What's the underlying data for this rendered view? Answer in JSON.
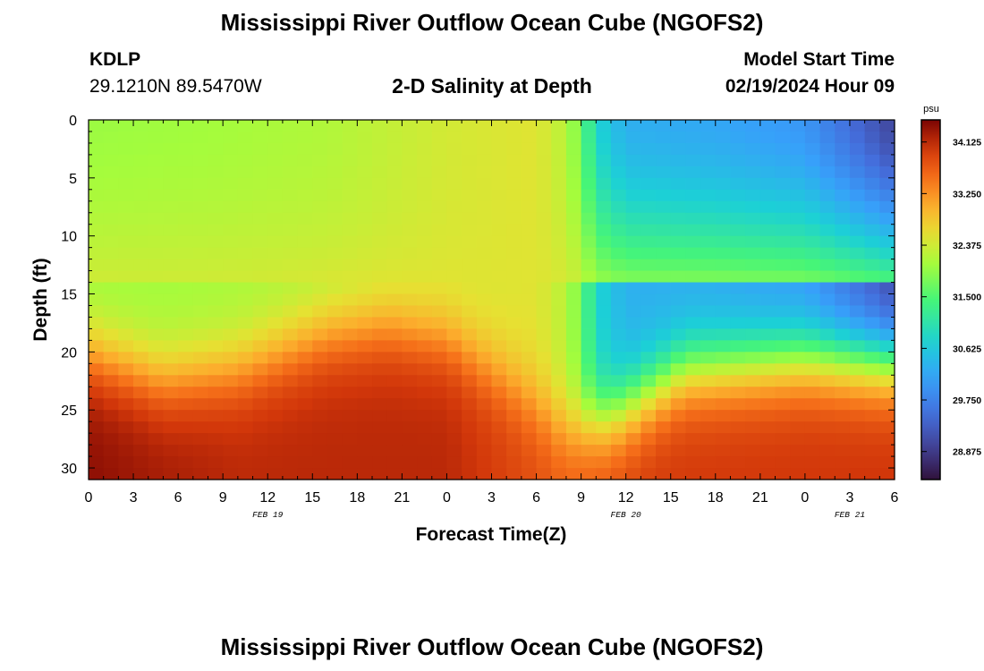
{
  "header": {
    "title": "Mississippi River Outflow Ocean Cube (NGOFS2)",
    "station_id": "KDLP",
    "station_coords": "29.1210N  89.5470W",
    "subtitle": "2-D Salinity at Depth",
    "start_time_label": "Model Start Time",
    "start_time_value": "02/19/2024 Hour 09"
  },
  "footer": {
    "title": "Mississippi River Outflow Ocean Cube (NGOFS2)"
  },
  "chart_data": {
    "type": "heatmap",
    "title": "2-D Salinity at Depth",
    "xlabel": "Forecast Time(Z)",
    "ylabel": "Depth (ft)",
    "x_tick_labels": [
      "0",
      "3",
      "6",
      "9",
      "12",
      "15",
      "18",
      "21",
      "0",
      "3",
      "6",
      "9",
      "12",
      "15",
      "18",
      "21",
      "0",
      "3",
      "6"
    ],
    "x_range_hours": [
      0,
      54
    ],
    "date_labels": [
      {
        "hour": 12,
        "label": "FEB 19"
      },
      {
        "hour": 36,
        "label": "FEB 20"
      },
      {
        "hour": 51,
        "label": "FEB 21"
      }
    ],
    "y_range": [
      0,
      31
    ],
    "y_inverted": true,
    "y_ticks": [
      0,
      5,
      10,
      15,
      20,
      25,
      30
    ],
    "colorbar": {
      "unit": "psu",
      "range": [
        28.4,
        34.5
      ],
      "ticks": [
        "34.125",
        "33.250",
        "32.375",
        "31.500",
        "30.625",
        "29.750",
        "28.875"
      ]
    },
    "grid_cols": 54,
    "grid_rows": 31,
    "surface_salinity": [
      [
        0,
        32.0
      ],
      [
        8,
        32.05
      ],
      [
        16,
        32.15
      ],
      [
        24,
        32.4
      ],
      [
        30,
        32.5
      ],
      [
        32,
        32.2
      ],
      [
        33,
        31.7
      ],
      [
        34,
        30.8
      ],
      [
        36,
        30.3
      ],
      [
        42,
        30.2
      ],
      [
        48,
        30.0
      ],
      [
        54,
        29.0
      ]
    ],
    "halocline_depth_ft": [
      [
        0,
        20.3
      ],
      [
        5,
        22.5
      ],
      [
        10,
        21.5
      ],
      [
        16,
        18.5
      ],
      [
        20,
        17.8
      ],
      [
        24,
        19.0
      ],
      [
        28,
        22.5
      ],
      [
        32,
        26.5
      ],
      [
        35,
        25.5
      ],
      [
        40,
        21.5
      ],
      [
        48,
        20.5
      ],
      [
        54,
        20.8
      ]
    ],
    "bottom_salinity": [
      [
        0,
        34.4
      ],
      [
        10,
        34.15
      ],
      [
        24,
        34.15
      ],
      [
        32,
        33.7
      ],
      [
        38,
        34.0
      ],
      [
        54,
        34.05
      ]
    ]
  }
}
